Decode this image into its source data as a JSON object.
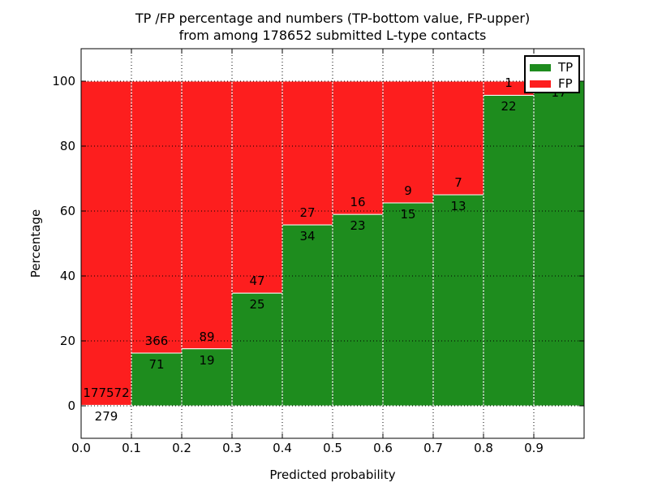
{
  "figure": {
    "title_line1": "TP /FP percentage and numbers (TP-bottom value, FP-upper)",
    "title_line2": "from among 178652 submitted L-type contacts",
    "background_color": "#ffffff"
  },
  "chart_data": {
    "type": "bar",
    "stacked": true,
    "title": "TP /FP percentage and numbers (TP-bottom value, FP-upper)\nfrom among 178652 submitted L-type contacts",
    "xlabel": "Predicted probability",
    "ylabel": "Percentage",
    "xlim": [
      0.0,
      1.0
    ],
    "ylim": [
      -10,
      110
    ],
    "xtick_labels": [
      "0.0",
      "0.1",
      "0.2",
      "0.3",
      "0.4",
      "0.5",
      "0.6",
      "0.7",
      "0.8",
      "0.9"
    ],
    "ytick_values": [
      0,
      20,
      40,
      60,
      80,
      100
    ],
    "grid": true,
    "grid_style": "dotted",
    "bar_edge_color": "#ffffff",
    "colors": {
      "tp": "#1e8c1e",
      "fp": "#fd1e1e"
    },
    "legend": {
      "position": "upper right",
      "entries": [
        {
          "label": "TP",
          "color": "#1e8c1e"
        },
        {
          "label": "FP",
          "color": "#fd1e1e"
        }
      ]
    },
    "bins": [
      {
        "x0": 0.0,
        "x1": 0.1,
        "tp": 279,
        "fp": 177572
      },
      {
        "x0": 0.1,
        "x1": 0.2,
        "tp": 71,
        "fp": 366
      },
      {
        "x0": 0.2,
        "x1": 0.3,
        "tp": 19,
        "fp": 89
      },
      {
        "x0": 0.3,
        "x1": 0.4,
        "tp": 25,
        "fp": 47
      },
      {
        "x0": 0.4,
        "x1": 0.5,
        "tp": 34,
        "fp": 27
      },
      {
        "x0": 0.5,
        "x1": 0.6,
        "tp": 23,
        "fp": 16
      },
      {
        "x0": 0.6,
        "x1": 0.7,
        "tp": 15,
        "fp": 9
      },
      {
        "x0": 0.7,
        "x1": 0.8,
        "tp": 13,
        "fp": 7
      },
      {
        "x0": 0.8,
        "x1": 0.9,
        "tp": 22,
        "fp": 1
      },
      {
        "x0": 0.9,
        "x1": 1.0,
        "tp": 17,
        "fp": 0
      }
    ]
  }
}
